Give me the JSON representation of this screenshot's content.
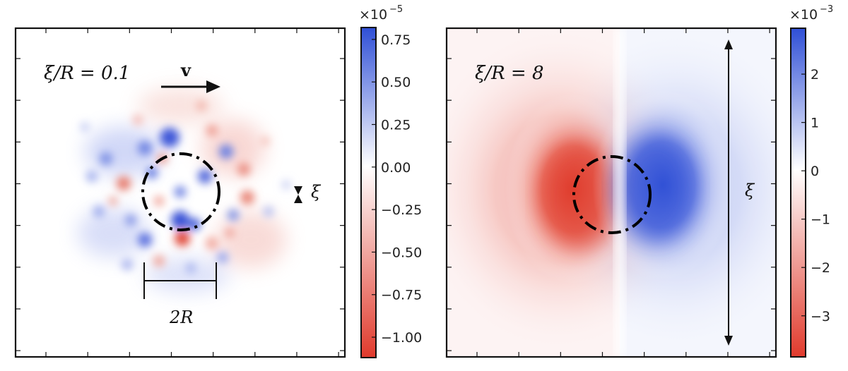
{
  "chart_data": [
    {
      "type": "heatmap",
      "panel_label": "ξ/R = 0.1",
      "velocity_label": "v",
      "diameter_label": "2R",
      "xi_label": "ξ",
      "colorbar": {
        "multiplier": "×10",
        "exponent": "−5",
        "ticks": [
          0.75,
          0.5,
          0.25,
          0.0,
          -0.25,
          -0.5,
          -0.75,
          -1.0
        ],
        "tick_labels": [
          "0.75",
          "0.50",
          "0.25",
          "0.00",
          "−0.25",
          "−0.50",
          "−0.75",
          "−1.00"
        ],
        "range": [
          -1.12,
          0.82
        ]
      },
      "colors": {
        "positive": "#2f4fd6",
        "negative": "#e03a2c",
        "zero": "#ffffff"
      }
    },
    {
      "type": "heatmap",
      "panel_label": "ξ/R = 8",
      "xi_label": "ξ",
      "colorbar": {
        "multiplier": "×10",
        "exponent": "−3",
        "ticks": [
          2,
          1,
          0,
          -1,
          -2,
          -3
        ],
        "tick_labels": [
          "2",
          "1",
          "0",
          "−1",
          "−2",
          "−3"
        ],
        "range": [
          -3.85,
          2.95
        ]
      },
      "colors": {
        "positive": "#2f4fd6",
        "negative": "#e03a2c",
        "zero": "#ffffff"
      }
    }
  ]
}
